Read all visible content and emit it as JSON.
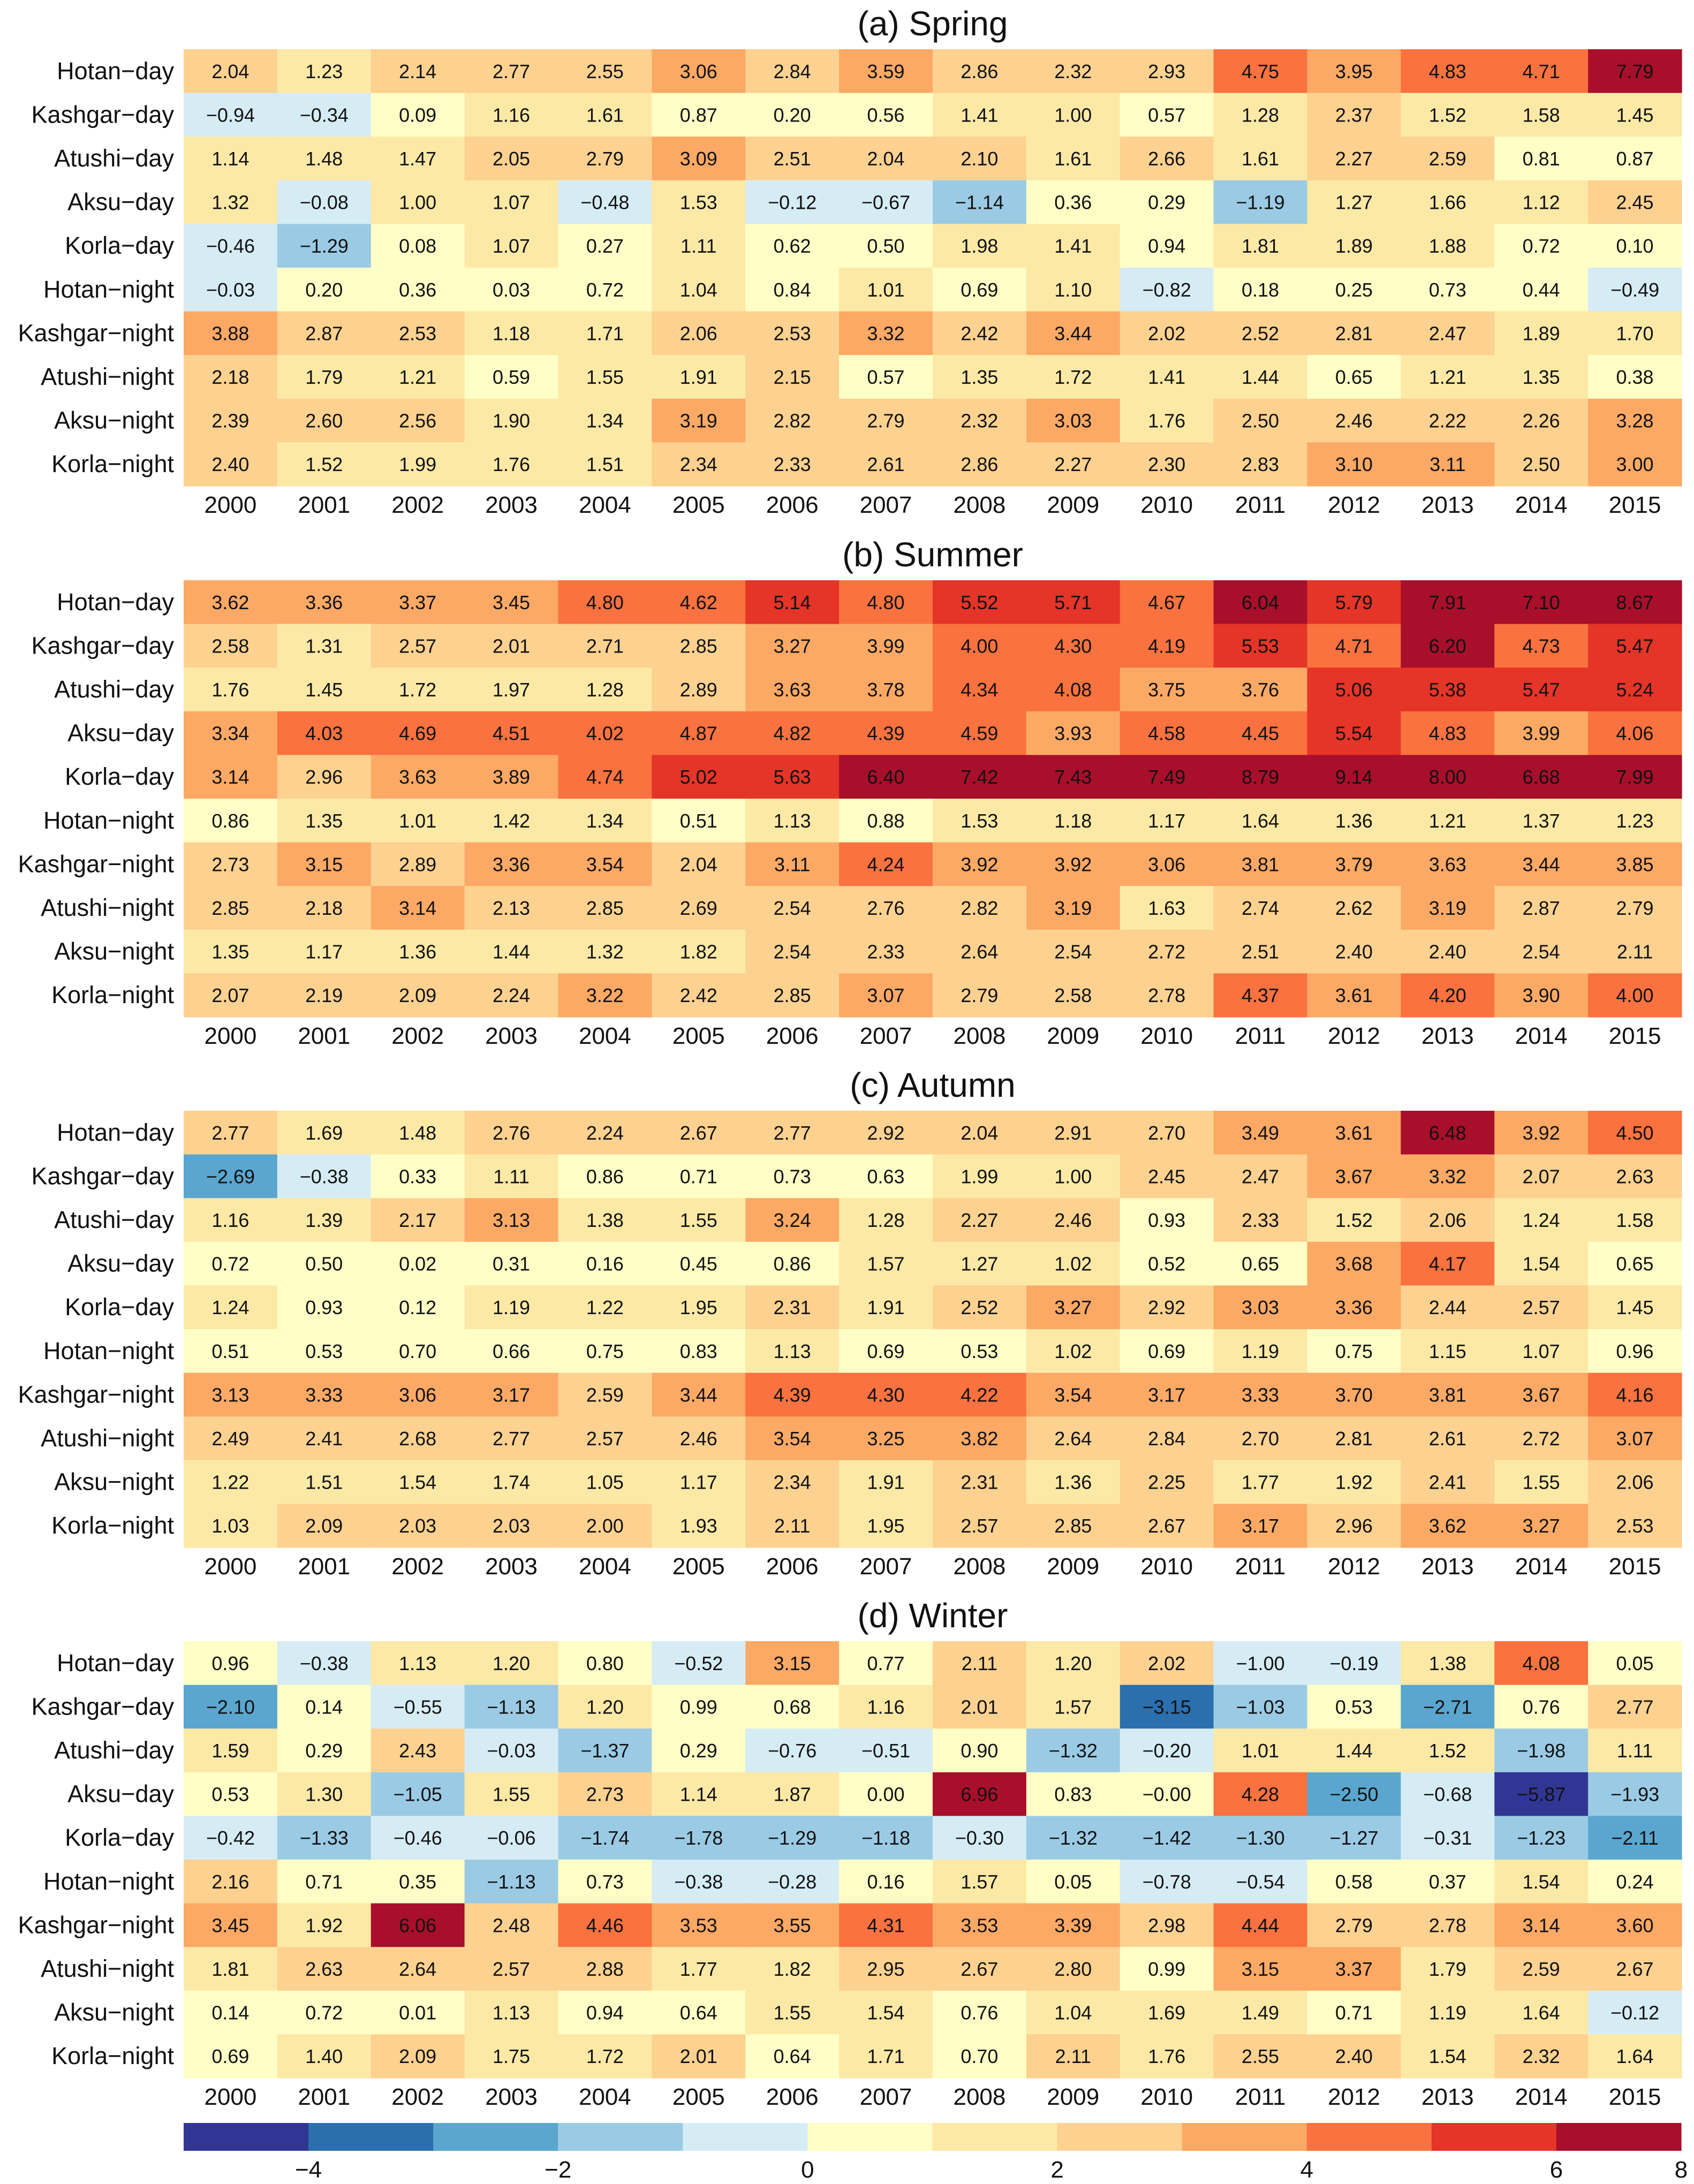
{
  "chart_data": {
    "type": "heatmap",
    "years": [
      "2000",
      "2001",
      "2002",
      "2003",
      "2004",
      "2005",
      "2006",
      "2007",
      "2008",
      "2009",
      "2010",
      "2011",
      "2012",
      "2013",
      "2014",
      "2015"
    ],
    "rows": [
      "Hotan−day",
      "Kashgar−day",
      "Atushi−day",
      "Aksu−day",
      "Korla−day",
      "Hotan−night",
      "Kashgar−night",
      "Atushi−night",
      "Aksu−night",
      "Korla−night"
    ],
    "panels": [
      {
        "title": "(a) Spring",
        "values": [
          [
            "2.04",
            "1.23",
            "2.14",
            "2.77",
            "2.55",
            "3.06",
            "2.84",
            "3.59",
            "2.86",
            "2.32",
            "2.93",
            "4.75",
            "3.95",
            "4.83",
            "4.71",
            "7.79"
          ],
          [
            "−0.94",
            "−0.34",
            "0.09",
            "1.16",
            "1.61",
            "0.87",
            "0.20",
            "0.56",
            "1.41",
            "1.00",
            "0.57",
            "1.28",
            "2.37",
            "1.52",
            "1.58",
            "1.45"
          ],
          [
            "1.14",
            "1.48",
            "1.47",
            "2.05",
            "2.79",
            "3.09",
            "2.51",
            "2.04",
            "2.10",
            "1.61",
            "2.66",
            "1.61",
            "2.27",
            "2.59",
            "0.81",
            "0.87"
          ],
          [
            "1.32",
            "−0.08",
            "1.00",
            "1.07",
            "−0.48",
            "1.53",
            "−0.12",
            "−0.67",
            "−1.14",
            "0.36",
            "0.29",
            "−1.19",
            "1.27",
            "1.66",
            "1.12",
            "2.45"
          ],
          [
            "−0.46",
            "−1.29",
            "0.08",
            "1.07",
            "0.27",
            "1.11",
            "0.62",
            "0.50",
            "1.98",
            "1.41",
            "0.94",
            "1.81",
            "1.89",
            "1.88",
            "0.72",
            "0.10"
          ],
          [
            "−0.03",
            "0.20",
            "0.36",
            "0.03",
            "0.72",
            "1.04",
            "0.84",
            "1.01",
            "0.69",
            "1.10",
            "−0.82",
            "0.18",
            "0.25",
            "0.73",
            "0.44",
            "−0.49"
          ],
          [
            "3.88",
            "2.87",
            "2.53",
            "1.18",
            "1.71",
            "2.06",
            "2.53",
            "3.32",
            "2.42",
            "3.44",
            "2.02",
            "2.52",
            "2.81",
            "2.47",
            "1.89",
            "1.70"
          ],
          [
            "2.18",
            "1.79",
            "1.21",
            "0.59",
            "1.55",
            "1.91",
            "2.15",
            "0.57",
            "1.35",
            "1.72",
            "1.41",
            "1.44",
            "0.65",
            "1.21",
            "1.35",
            "0.38"
          ],
          [
            "2.39",
            "2.60",
            "2.56",
            "1.90",
            "1.34",
            "3.19",
            "2.82",
            "2.79",
            "2.32",
            "3.03",
            "1.76",
            "2.50",
            "2.46",
            "2.22",
            "2.26",
            "3.28"
          ],
          [
            "2.40",
            "1.52",
            "1.99",
            "1.76",
            "1.51",
            "2.34",
            "2.33",
            "2.61",
            "2.86",
            "2.27",
            "2.30",
            "2.83",
            "3.10",
            "3.11",
            "2.50",
            "3.00"
          ]
        ]
      },
      {
        "title": "(b) Summer",
        "values": [
          [
            "3.62",
            "3.36",
            "3.37",
            "3.45",
            "4.80",
            "4.62",
            "5.14",
            "4.80",
            "5.52",
            "5.71",
            "4.67",
            "6.04",
            "5.79",
            "7.91",
            "7.10",
            "8.67"
          ],
          [
            "2.58",
            "1.31",
            "2.57",
            "2.01",
            "2.71",
            "2.85",
            "3.27",
            "3.99",
            "4.00",
            "4.30",
            "4.19",
            "5.53",
            "4.71",
            "6.20",
            "4.73",
            "5.47"
          ],
          [
            "1.76",
            "1.45",
            "1.72",
            "1.97",
            "1.28",
            "2.89",
            "3.63",
            "3.78",
            "4.34",
            "4.08",
            "3.75",
            "3.76",
            "5.06",
            "5.38",
            "5.47",
            "5.24"
          ],
          [
            "3.34",
            "4.03",
            "4.69",
            "4.51",
            "4.02",
            "4.87",
            "4.82",
            "4.39",
            "4.59",
            "3.93",
            "4.58",
            "4.45",
            "5.54",
            "4.83",
            "3.99",
            "4.06"
          ],
          [
            "3.14",
            "2.96",
            "3.63",
            "3.89",
            "4.74",
            "5.02",
            "5.63",
            "6.40",
            "7.42",
            "7.43",
            "7.49",
            "8.79",
            "9.14",
            "8.00",
            "6.68",
            "7.99"
          ],
          [
            "0.86",
            "1.35",
            "1.01",
            "1.42",
            "1.34",
            "0.51",
            "1.13",
            "0.88",
            "1.53",
            "1.18",
            "1.17",
            "1.64",
            "1.36",
            "1.21",
            "1.37",
            "1.23"
          ],
          [
            "2.73",
            "3.15",
            "2.89",
            "3.36",
            "3.54",
            "2.04",
            "3.11",
            "4.24",
            "3.92",
            "3.92",
            "3.06",
            "3.81",
            "3.79",
            "3.63",
            "3.44",
            "3.85"
          ],
          [
            "2.85",
            "2.18",
            "3.14",
            "2.13",
            "2.85",
            "2.69",
            "2.54",
            "2.76",
            "2.82",
            "3.19",
            "1.63",
            "2.74",
            "2.62",
            "3.19",
            "2.87",
            "2.79"
          ],
          [
            "1.35",
            "1.17",
            "1.36",
            "1.44",
            "1.32",
            "1.82",
            "2.54",
            "2.33",
            "2.64",
            "2.54",
            "2.72",
            "2.51",
            "2.40",
            "2.40",
            "2.54",
            "2.11"
          ],
          [
            "2.07",
            "2.19",
            "2.09",
            "2.24",
            "3.22",
            "2.42",
            "2.85",
            "3.07",
            "2.79",
            "2.58",
            "2.78",
            "4.37",
            "3.61",
            "4.20",
            "3.90",
            "4.00"
          ]
        ]
      },
      {
        "title": "(c) Autumn",
        "values": [
          [
            "2.77",
            "1.69",
            "1.48",
            "2.76",
            "2.24",
            "2.67",
            "2.77",
            "2.92",
            "2.04",
            "2.91",
            "2.70",
            "3.49",
            "3.61",
            "6.48",
            "3.92",
            "4.50"
          ],
          [
            "−2.69",
            "−0.38",
            "0.33",
            "1.11",
            "0.86",
            "0.71",
            "0.73",
            "0.63",
            "1.99",
            "1.00",
            "2.45",
            "2.47",
            "3.67",
            "3.32",
            "2.07",
            "2.63"
          ],
          [
            "1.16",
            "1.39",
            "2.17",
            "3.13",
            "1.38",
            "1.55",
            "3.24",
            "1.28",
            "2.27",
            "2.46",
            "0.93",
            "2.33",
            "1.52",
            "2.06",
            "1.24",
            "1.58"
          ],
          [
            "0.72",
            "0.50",
            "0.02",
            "0.31",
            "0.16",
            "0.45",
            "0.86",
            "1.57",
            "1.27",
            "1.02",
            "0.52",
            "0.65",
            "3.68",
            "4.17",
            "1.54",
            "0.65"
          ],
          [
            "1.24",
            "0.93",
            "0.12",
            "1.19",
            "1.22",
            "1.95",
            "2.31",
            "1.91",
            "2.52",
            "3.27",
            "2.92",
            "3.03",
            "3.36",
            "2.44",
            "2.57",
            "1.45"
          ],
          [
            "0.51",
            "0.53",
            "0.70",
            "0.66",
            "0.75",
            "0.83",
            "1.13",
            "0.69",
            "0.53",
            "1.02",
            "0.69",
            "1.19",
            "0.75",
            "1.15",
            "1.07",
            "0.96"
          ],
          [
            "3.13",
            "3.33",
            "3.06",
            "3.17",
            "2.59",
            "3.44",
            "4.39",
            "4.30",
            "4.22",
            "3.54",
            "3.17",
            "3.33",
            "3.70",
            "3.81",
            "3.67",
            "4.16"
          ],
          [
            "2.49",
            "2.41",
            "2.68",
            "2.77",
            "2.57",
            "2.46",
            "3.54",
            "3.25",
            "3.82",
            "2.64",
            "2.84",
            "2.70",
            "2.81",
            "2.61",
            "2.72",
            "3.07"
          ],
          [
            "1.22",
            "1.51",
            "1.54",
            "1.74",
            "1.05",
            "1.17",
            "2.34",
            "1.91",
            "2.31",
            "1.36",
            "2.25",
            "1.77",
            "1.92",
            "2.41",
            "1.55",
            "2.06"
          ],
          [
            "1.03",
            "2.09",
            "2.03",
            "2.03",
            "2.00",
            "1.93",
            "2.11",
            "1.95",
            "2.57",
            "2.85",
            "2.67",
            "3.17",
            "2.96",
            "3.62",
            "3.27",
            "2.53"
          ]
        ]
      },
      {
        "title": "(d) Winter",
        "values": [
          [
            "0.96",
            "−0.38",
            "1.13",
            "1.20",
            "0.80",
            "−0.52",
            "3.15",
            "0.77",
            "2.11",
            "1.20",
            "2.02",
            "−1.00",
            "−0.19",
            "1.38",
            "4.08",
            "0.05"
          ],
          [
            "−2.10",
            "0.14",
            "−0.55",
            "−1.13",
            "1.20",
            "0.99",
            "0.68",
            "1.16",
            "2.01",
            "1.57",
            "−3.15",
            "−1.03",
            "0.53",
            "−2.71",
            "0.76",
            "2.77"
          ],
          [
            "1.59",
            "0.29",
            "2.43",
            "−0.03",
            "−1.37",
            "0.29",
            "−0.76",
            "−0.51",
            "0.90",
            "−1.32",
            "−0.20",
            "1.01",
            "1.44",
            "1.52",
            "−1.98",
            "1.11"
          ],
          [
            "0.53",
            "1.30",
            "−1.05",
            "1.55",
            "2.73",
            "1.14",
            "1.87",
            "0.00",
            "6.96",
            "0.83",
            "−0.00",
            "4.28",
            "−2.50",
            "−0.68",
            "−5.87",
            "−1.93"
          ],
          [
            "−0.42",
            "−1.33",
            "−0.46",
            "−0.06",
            "−1.74",
            "−1.78",
            "−1.29",
            "−1.18",
            "−0.30",
            "−1.32",
            "−1.42",
            "−1.30",
            "−1.27",
            "−0.31",
            "−1.23",
            "−2.11"
          ],
          [
            "2.16",
            "0.71",
            "0.35",
            "−1.13",
            "0.73",
            "−0.38",
            "−0.28",
            "0.16",
            "1.57",
            "0.05",
            "−0.78",
            "−0.54",
            "0.58",
            "0.37",
            "1.54",
            "0.24"
          ],
          [
            "3.45",
            "1.92",
            "6.06",
            "2.48",
            "4.46",
            "3.53",
            "3.55",
            "4.31",
            "3.53",
            "3.39",
            "2.98",
            "4.44",
            "2.79",
            "2.78",
            "3.14",
            "3.60"
          ],
          [
            "1.81",
            "2.63",
            "2.64",
            "2.57",
            "2.88",
            "1.77",
            "1.82",
            "2.95",
            "2.67",
            "2.80",
            "0.99",
            "3.15",
            "3.37",
            "1.79",
            "2.59",
            "2.67"
          ],
          [
            "0.14",
            "0.72",
            "0.01",
            "1.13",
            "0.94",
            "0.64",
            "1.55",
            "1.54",
            "0.76",
            "1.04",
            "1.69",
            "1.49",
            "0.71",
            "1.19",
            "1.64",
            "−0.12"
          ],
          [
            "0.69",
            "1.40",
            "2.09",
            "1.75",
            "1.72",
            "2.01",
            "0.64",
            "1.71",
            "0.70",
            "2.11",
            "1.76",
            "2.55",
            "2.40",
            "1.54",
            "2.32",
            "1.64"
          ]
        ]
      }
    ],
    "colorbar": {
      "bounds": [
        -6,
        -4,
        -3,
        -2,
        -1,
        0,
        1,
        2,
        3,
        4,
        5,
        6,
        8,
        10
      ],
      "colors": [
        "#313695",
        "#2b6fae",
        "#5aa6cf",
        "#9bcbe4",
        "#d6ecf5",
        "#fefec6",
        "#fde9a6",
        "#fdd190",
        "#fca966",
        "#f9723f",
        "#e53428",
        "#a80f2b"
      ],
      "tick_values": [
        -4,
        -2,
        0,
        2,
        4,
        6,
        8
      ],
      "tick_labels": [
        "−4",
        "−2",
        "0",
        "2",
        "4",
        "6",
        "8"
      ]
    }
  }
}
